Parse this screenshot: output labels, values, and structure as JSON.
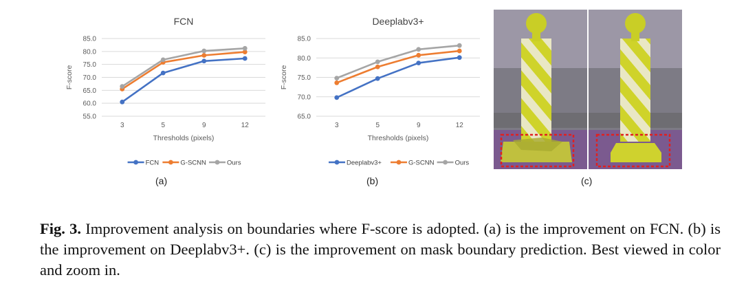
{
  "chart_data": [
    {
      "type": "line",
      "title": "FCN",
      "xlabel": "Thresholds (pixels)",
      "ylabel": "F-score",
      "categories": [
        "3",
        "5",
        "9",
        "12"
      ],
      "ylim": [
        55.0,
        85.0
      ],
      "yticks": [
        "55.0",
        "60.0",
        "65.0",
        "70.0",
        "75.0",
        "80.0",
        "85.0"
      ],
      "series": [
        {
          "name": "FCN",
          "values": [
            60.5,
            71.7,
            76.3,
            77.3
          ],
          "color": "#4472C4"
        },
        {
          "name": "G-SCNN",
          "values": [
            65.5,
            75.8,
            78.5,
            79.8
          ],
          "color": "#ED7D31"
        },
        {
          "name": "Ours",
          "values": [
            66.5,
            76.8,
            80.2,
            81.2
          ],
          "color": "#A5A5A5"
        }
      ],
      "sublabel": "(a)"
    },
    {
      "type": "line",
      "title": "Deeplabv3+",
      "xlabel": "Thresholds (pixels)",
      "ylabel": "F-score",
      "categories": [
        "3",
        "5",
        "9",
        "12"
      ],
      "ylim": [
        65.0,
        85.0
      ],
      "yticks": [
        "65.0",
        "70.0",
        "75.0",
        "80.0",
        "85.0"
      ],
      "series": [
        {
          "name": "Deeplabv3+",
          "values": [
            69.8,
            74.7,
            78.7,
            80.1
          ],
          "color": "#4472C4"
        },
        {
          "name": "G-SCNN",
          "values": [
            73.6,
            77.7,
            80.7,
            81.8
          ],
          "color": "#ED7D31"
        },
        {
          "name": "Ours",
          "values": [
            74.8,
            79.0,
            82.2,
            83.2
          ],
          "color": "#A5A5A5"
        }
      ],
      "sublabel": "(b)"
    }
  ],
  "photo": {
    "sublabel": "(c)",
    "colors": {
      "highlight": "#E02020",
      "post": "#D6DC2A",
      "stripe": "#E8E4D0"
    }
  },
  "caption": {
    "label": "Fig. 3.",
    "text": " Improvement analysis on boundaries where F-score is adopted. (a) is the improvement on FCN. (b) is the improvement on Deeplabv3+. (c) is the improvement on mask boundary prediction. Best viewed in color and zoom in."
  }
}
